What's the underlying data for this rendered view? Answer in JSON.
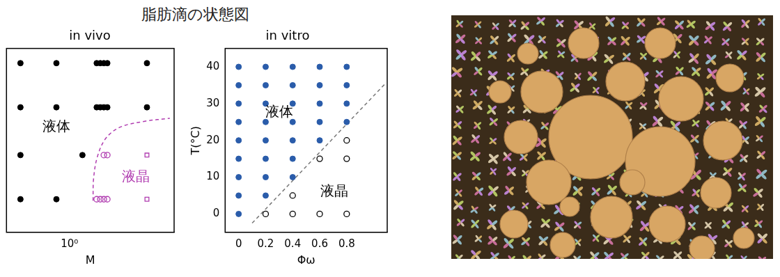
{
  "title": "脂肪滴の状態図",
  "chart_data": [
    {
      "type": "scatter",
      "title": "in vivo",
      "x_label": "M",
      "log": "x",
      "grid": false,
      "tick_labels": "x",
      "xlim": [
        0.25,
        10
      ],
      "xticks": [
        {
          "value": 1,
          "label": "10⁰"
        }
      ],
      "ylim": [
        -6,
        44
      ],
      "series": [
        {
          "color": "#000000",
          "marker": "filled_circle",
          "x": [
            0.34,
            0.75,
            1.82,
            1.97,
            2.13,
            2.3,
            5.5,
            0.34,
            0.75,
            1.82,
            1.97,
            2.13,
            2.3,
            5.5,
            0.34,
            1.33,
            0.34,
            0.75
          ],
          "values": [
            40,
            40,
            40,
            40,
            40,
            40,
            40,
            28,
            28,
            28,
            28,
            28,
            28,
            28,
            15,
            15,
            3,
            3
          ]
        },
        {
          "color": "#b03cb0",
          "marker": "open_circle",
          "x": [
            2.13,
            2.3,
            1.82,
            1.97,
            2.13,
            2.3
          ],
          "values": [
            15,
            15,
            3,
            3,
            3,
            3
          ]
        },
        {
          "color": "#b03cb0",
          "marker": "open_square",
          "x": [
            5.5,
            5.5
          ],
          "values": [
            15,
            3
          ]
        },
        {
          "type": "line",
          "color": "#b03cb0",
          "line_style": "dashed",
          "x": [
            1.68,
            1.7,
            1.85,
            2.23,
            3.05,
            5.26,
            9.1
          ],
          "values": [
            2.6,
            8.6,
            14.6,
            19.6,
            22.6,
            24.2,
            25
          ]
        }
      ],
      "annotations": [
        {
          "text": "液体",
          "x": 0.75,
          "y": 22.6,
          "color": "#000000"
        },
        {
          "text": "液晶",
          "x": 4.3,
          "y": 9,
          "color": "#b03cb0"
        }
      ]
    },
    {
      "type": "scatter",
      "title": "in vitro",
      "x_label": "Φω",
      "y_label": "T(°C)",
      "grid": false,
      "xlim": [
        -0.1,
        1.1
      ],
      "xticks": [
        0,
        0.2,
        0.4,
        0.6,
        0.8
      ],
      "ylim": [
        -5,
        45
      ],
      "yticks": [
        0,
        10,
        20,
        30,
        40
      ],
      "series": [
        {
          "color": "#2a5caa",
          "marker": "filled_circle",
          "x": [
            0,
            0,
            0,
            0,
            0,
            0,
            0,
            0,
            0,
            0.2,
            0.2,
            0.2,
            0.2,
            0.2,
            0.2,
            0.2,
            0.2,
            0.4,
            0.4,
            0.4,
            0.4,
            0.4,
            0.4,
            0.4,
            0.6,
            0.6,
            0.6,
            0.6,
            0.6,
            0.8,
            0.8,
            0.8,
            0.8
          ],
          "values": [
            0,
            5,
            10,
            15,
            20,
            25,
            30,
            35,
            40,
            5,
            10,
            15,
            20,
            25,
            30,
            35,
            40,
            10,
            15,
            20,
            25,
            30,
            35,
            40,
            20,
            25,
            30,
            35,
            40,
            25,
            30,
            35,
            40
          ]
        },
        {
          "color": "#000000",
          "marker": "open_circle",
          "x": [
            0.2,
            0.4,
            0.4,
            0.6,
            0.6,
            0.8,
            0.8,
            0.8
          ],
          "values": [
            0,
            0,
            5,
            0,
            15,
            0,
            15,
            20
          ]
        },
        {
          "type": "line",
          "color": "#777777",
          "line_style": "dashed",
          "x": [
            0.1,
            1.09
          ],
          "values": [
            -2.5,
            35.6
          ]
        }
      ],
      "annotations": [
        {
          "text": "液体",
          "x": 0.3,
          "y": 27.6,
          "color": "#000000"
        },
        {
          "text": "液晶",
          "x": 0.71,
          "y": 6,
          "color": "#000000"
        }
      ]
    }
  ]
}
